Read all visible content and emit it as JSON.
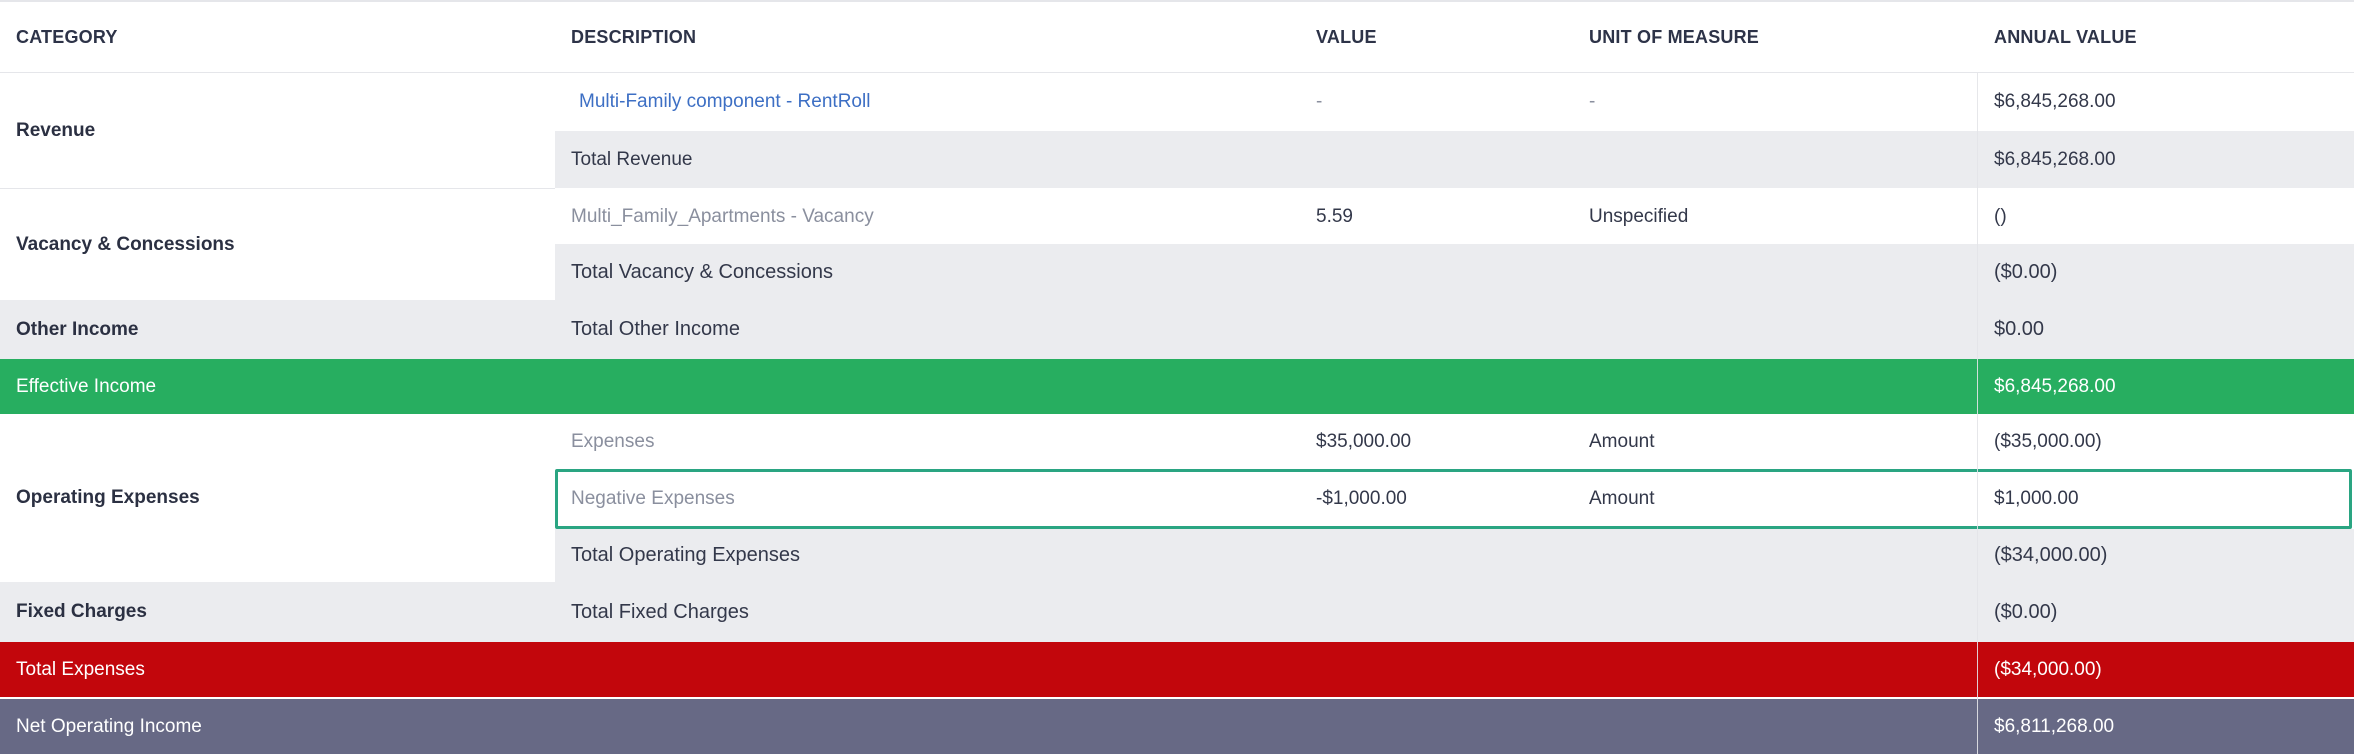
{
  "headers": {
    "category": "CATEGORY",
    "description": "DESCRIPTION",
    "value": "VALUE",
    "unit": "UNIT OF MEASURE",
    "annual": "ANNUAL VALUE"
  },
  "revenue": {
    "category": "Revenue",
    "rows": [
      {
        "description": "Multi-Family component - RentRoll",
        "value": "-",
        "unit": "-",
        "annual": "$6,845,268.00"
      }
    ],
    "total_label": "Total Revenue",
    "total_annual": "$6,845,268.00"
  },
  "vacancy": {
    "category": "Vacancy & Concessions",
    "rows": [
      {
        "description": "Multi_Family_Apartments - Vacancy",
        "value": "5.59",
        "unit": "Unspecified",
        "annual": "()"
      }
    ],
    "total_label": "Total Vacancy & Concessions",
    "total_annual": "($0.00)"
  },
  "other_income": {
    "category": "Other Income",
    "total_label": "Total Other Income",
    "total_annual": "$0.00"
  },
  "effective_income": {
    "label": "Effective Income",
    "annual": "$6,845,268.00"
  },
  "operating_expenses": {
    "category": "Operating Expenses",
    "rows": [
      {
        "description": "Expenses",
        "value": "$35,000.00",
        "unit": "Amount",
        "annual": "($35,000.00)"
      },
      {
        "description": "Negative Expenses",
        "value": "-$1,000.00",
        "unit": "Amount",
        "annual": "$1,000.00"
      }
    ],
    "total_label": "Total Operating Expenses",
    "total_annual": "($34,000.00)"
  },
  "fixed_charges": {
    "category": "Fixed Charges",
    "total_label": "Total Fixed Charges",
    "total_annual": "($0.00)"
  },
  "total_expenses": {
    "label": "Total Expenses",
    "annual": "($34,000.00)"
  },
  "net_operating_income": {
    "label": "Net Operating Income",
    "annual": "$6,811,268.00"
  },
  "colors": {
    "effective_income_bg": "#27ae60",
    "total_expenses_bg": "#c2060c",
    "noi_bg": "#676985",
    "highlight_border": "#2aa582",
    "link": "#3d6fc4"
  }
}
